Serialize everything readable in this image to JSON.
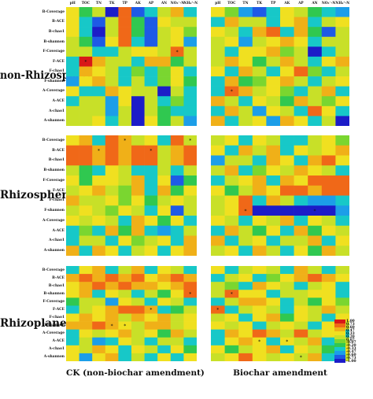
{
  "chart_data": {
    "type": "heatmap",
    "columns": [
      "pH",
      "TOC",
      "TN",
      "TK",
      "TP",
      "AK",
      "AP",
      "AN",
      "NO₃⁻-N",
      "NH₄⁺-N"
    ],
    "rows": [
      "B-Coverage",
      "B-ACE",
      "B-chao1",
      "B-shannon",
      "F-Coverage",
      "F-ACE",
      "F-chao1",
      "F-shannon",
      "A-Coverage",
      "A-ACE",
      "A-chao1",
      "A-shannon"
    ],
    "x_titles": [
      "CK (non-biochar amendment)",
      "Biochar amendment"
    ],
    "y_sections": [
      "non-Rhizosphere",
      "Rhizosphere",
      "Rhizoplane"
    ],
    "scale": {
      "min": -1.0,
      "max": 1.0,
      "ticks": [
        "1.00",
        "0.73",
        "0.60",
        "0.47",
        "0.33",
        "0.20",
        "0.07",
        "-0.07",
        "-0.20",
        "-0.33",
        "-0.47",
        "-0.60",
        "-0.73",
        "-1.00"
      ],
      "colors": [
        "#1c1cc8",
        "#1e5ae6",
        "#1c9ee8",
        "#17c8c8",
        "#30c850",
        "#7ad630",
        "#c8e028",
        "#f0e020",
        "#f0b018",
        "#f06818",
        "#d81818"
      ]
    },
    "panels": [
      {
        "section": "non-Rhizosphere",
        "treatment": "CK (non-biochar amendment)",
        "values": [
          [
            0.4,
            -0.2,
            0.2,
            -0.9,
            0.7,
            -0.7,
            -0.4,
            0.2,
            0.6,
            -0.4
          ],
          [
            0.4,
            -0.4,
            -0.75,
            0.2,
            0.7,
            -0.2,
            -0.7,
            0.4,
            0.2,
            0.2
          ],
          [
            0.4,
            -0.4,
            -0.85,
            0.2,
            0.7,
            -0.2,
            -0.7,
            0.2,
            0.4,
            -0.05
          ],
          [
            0.2,
            -0.1,
            -0.8,
            0.4,
            0.8,
            -0.3,
            -0.7,
            0.2,
            0.4,
            -0.5
          ],
          [
            0.2,
            0.1,
            -0.4,
            -0.4,
            0.2,
            0.4,
            0.45,
            0.2,
            0.8,
            0.2
          ],
          [
            -0.4,
            0.9,
            0.6,
            0.2,
            0.2,
            -0.4,
            0.6,
            0.6,
            -0.2,
            0.2
          ],
          [
            -0.4,
            0.6,
            0.4,
            0.2,
            -0.4,
            -0.05,
            -0.4,
            -0.05,
            0.4,
            -0.4
          ],
          [
            -0.6,
            0.4,
            0.6,
            0.2,
            -0.4,
            0.2,
            -0.4,
            -0.05,
            0.4,
            -0.2
          ],
          [
            0.4,
            -0.4,
            -0.4,
            0.6,
            0.4,
            0.2,
            0.2,
            -0.9,
            0.2,
            -0.4
          ],
          [
            -0.4,
            0.2,
            0.2,
            -0.5,
            0.4,
            -0.9,
            0.2,
            -0.4,
            -0.05,
            -0.4
          ],
          [
            0.2,
            0.2,
            0.2,
            -0.6,
            0.2,
            -0.9,
            0.2,
            -0.2,
            -0.4,
            -0.4
          ],
          [
            0.2,
            0.2,
            0.4,
            -0.4,
            0.2,
            -0.85,
            0.4,
            -0.2,
            0.2,
            -0.6
          ]
        ],
        "stars": [
          [
            4,
            8
          ],
          [
            5,
            1
          ]
        ]
      },
      {
        "section": "non-Rhizosphere",
        "treatment": "Biochar amendment",
        "values": [
          [
            0.4,
            -0.05,
            -0.6,
            -0.8,
            -0.4,
            0.4,
            0.2,
            -0.2,
            -0.4,
            -0.6
          ],
          [
            -0.4,
            0.6,
            0.2,
            0.2,
            -0.4,
            0.4,
            0.6,
            -0.4,
            0.2,
            0.4
          ],
          [
            0.4,
            0.2,
            -0.4,
            0.6,
            0.8,
            -0.4,
            0.6,
            -0.2,
            -0.8,
            0.2
          ],
          [
            0.2,
            0.4,
            -0.6,
            0.2,
            0.4,
            0.6,
            0.4,
            -0.4,
            0.2,
            0.2
          ],
          [
            0.2,
            -0.4,
            0.4,
            0.4,
            0.6,
            -0.05,
            0.2,
            -0.9,
            -0.4,
            0.2
          ],
          [
            0.2,
            0.6,
            0.4,
            -0.2,
            0.2,
            0.6,
            0.2,
            -0.4,
            0.4,
            0.6
          ],
          [
            0.4,
            -0.4,
            0.6,
            0.2,
            -0.4,
            0.4,
            0.8,
            -0.05,
            -0.4,
            0.2
          ],
          [
            -0.4,
            0.6,
            -0.2,
            -0.05,
            0.4,
            0.6,
            0.2,
            -0.4,
            0.2,
            0.4
          ],
          [
            -0.4,
            0.8,
            0.6,
            0.2,
            0.4,
            -0.05,
            -0.4,
            0.2,
            0.6,
            -0.4
          ],
          [
            0.6,
            0.2,
            -0.4,
            0.4,
            0.2,
            -0.2,
            0.6,
            0.2,
            -0.05,
            0.4
          ],
          [
            -0.4,
            0.6,
            0.2,
            -0.6,
            0.4,
            0.2,
            -0.4,
            0.8,
            0.4,
            -0.4
          ],
          [
            0.6,
            -0.4,
            0.2,
            0.4,
            -0.6,
            0.6,
            0.4,
            -0.4,
            0.2,
            -0.95
          ]
        ],
        "stars": [
          [
            8,
            1
          ]
        ]
      },
      {
        "section": "Rhizosphere",
        "treatment": "CK (non-biochar amendment)",
        "values": [
          [
            0.4,
            0.6,
            -0.4,
            0.8,
            0.6,
            0.2,
            0.4,
            -0.4,
            0.8,
            0.2
          ],
          [
            0.8,
            0.8,
            0.6,
            0.8,
            0.6,
            0.8,
            0.7,
            0.2,
            0.6,
            0.8
          ],
          [
            0.8,
            0.8,
            0.6,
            0.7,
            0.6,
            0.8,
            0.7,
            0.2,
            0.6,
            0.8
          ],
          [
            0.2,
            -0.2,
            -0.4,
            0.4,
            0.2,
            -0.4,
            -0.4,
            0.2,
            -0.4,
            0.2
          ],
          [
            0.4,
            -0.2,
            0.4,
            0.4,
            0.2,
            0.6,
            -0.4,
            0.4,
            -0.8,
            -0.2
          ],
          [
            0.2,
            0.4,
            0.6,
            0.2,
            -0.05,
            0.6,
            -0.4,
            0.6,
            -0.2,
            0.4
          ],
          [
            0.6,
            0.2,
            0.2,
            0.4,
            -0.05,
            0.4,
            -0.2,
            0.2,
            0.4,
            0.2
          ],
          [
            0.2,
            0.4,
            0.2,
            -0.05,
            0.4,
            0.2,
            -0.4,
            0.4,
            -0.8,
            0.2
          ],
          [
            0.4,
            0.2,
            0.4,
            0.2,
            -0.4,
            0.6,
            0.4,
            -0.2,
            0.4,
            -0.4
          ],
          [
            -0.4,
            -0.05,
            -0.4,
            0.6,
            -0.2,
            0.6,
            -0.4,
            -0.6,
            -0.4,
            0.2
          ],
          [
            -0.4,
            0.2,
            0.2,
            -0.4,
            0.4,
            -0.05,
            0.2,
            0.4,
            -0.4,
            0.6
          ],
          [
            0.6,
            -0.4,
            0.6,
            0.4,
            -0.4,
            0.2,
            0.4,
            -0.4,
            0.4,
            0.6
          ]
        ],
        "stars": [
          [
            0,
            4
          ],
          [
            0,
            9
          ],
          [
            1,
            2
          ],
          [
            1,
            6
          ]
        ]
      },
      {
        "section": "Rhizosphere",
        "treatment": "Biochar amendment",
        "values": [
          [
            0.2,
            0.4,
            -0.4,
            0.4,
            0.2,
            -0.4,
            -0.4,
            0.2,
            0.4,
            -0.05
          ],
          [
            0.4,
            -0.4,
            0.6,
            0.2,
            0.6,
            -0.4,
            0.4,
            0.2,
            0.4,
            0.6
          ],
          [
            -0.6,
            0.2,
            0.2,
            -0.4,
            0.6,
            0.4,
            -0.4,
            0.6,
            0.8,
            0.4
          ],
          [
            0.2,
            0.6,
            -0.4,
            -0.05,
            0.4,
            0.2,
            0.6,
            0.4,
            0.2,
            -0.4
          ],
          [
            -0.4,
            0.2,
            0.4,
            0.6,
            -0.4,
            0.6,
            0.4,
            0.8,
            0.8,
            0.8
          ],
          [
            0.4,
            -0.2,
            0.2,
            0.6,
            0.4,
            0.8,
            0.8,
            0.6,
            0.8,
            0.8
          ],
          [
            0.2,
            0.4,
            0.8,
            -0.4,
            0.6,
            0.2,
            -0.4,
            -0.6,
            -0.6,
            -0.4
          ],
          [
            0.2,
            0.4,
            0.8,
            -0.9,
            -0.9,
            -0.9,
            -0.9,
            -0.9,
            -0.9,
            -0.6
          ],
          [
            0.4,
            0.2,
            -0.4,
            0.4,
            0.2,
            0.6,
            -0.4,
            0.4,
            0.2,
            -0.4
          ],
          [
            -0.4,
            0.6,
            0.2,
            -0.2,
            0.4,
            -0.4,
            0.6,
            -0.2,
            0.4,
            0.2
          ],
          [
            0.6,
            -0.4,
            0.2,
            0.4,
            -0.4,
            0.2,
            0.2,
            0.6,
            -0.4,
            0.4
          ],
          [
            0.2,
            0.4,
            -0.4,
            0.6,
            0.2,
            -0.4,
            0.4,
            -0.2,
            0.6,
            0.2
          ]
        ],
        "stars": [
          [
            7,
            2
          ],
          [
            7,
            7
          ]
        ]
      },
      {
        "section": "Rhizoplane",
        "treatment": "CK (non-biochar amendment)",
        "values": [
          [
            -0.4,
            0.4,
            0.6,
            -0.4,
            0.2,
            0.6,
            -0.4,
            0.4,
            0.2,
            -0.4
          ],
          [
            0.6,
            0.8,
            0.6,
            0.8,
            0.6,
            0.8,
            0.4,
            0.6,
            0.8,
            0.6
          ],
          [
            0.4,
            0.6,
            0.8,
            0.6,
            0.8,
            0.6,
            0.6,
            0.4,
            0.6,
            0.8
          ],
          [
            0.4,
            0.6,
            -0.4,
            0.4,
            0.2,
            -0.4,
            0.2,
            -0.2,
            0.4,
            0.8
          ],
          [
            -0.2,
            0.2,
            0.2,
            -0.6,
            0.4,
            0.2,
            -0.4,
            0.4,
            0.2,
            -0.4
          ],
          [
            -0.4,
            0.2,
            0.4,
            0.6,
            0.8,
            0.8,
            0.6,
            -0.4,
            -0.2,
            0.2
          ],
          [
            0.4,
            0.6,
            0.4,
            0.6,
            0.2,
            0.6,
            0.4,
            0.6,
            0.2,
            0.4
          ],
          [
            0.6,
            0.6,
            0.8,
            0.6,
            0.4,
            0.2,
            0.6,
            0.6,
            0.2,
            0.4
          ],
          [
            -0.4,
            0.4,
            0.2,
            0.4,
            0.6,
            0.2,
            0.4,
            -0.2,
            0.6,
            0.2
          ],
          [
            -0.4,
            0.2,
            -0.6,
            -0.4,
            0.4,
            0.2,
            -0.4,
            0.2,
            0.2,
            -0.4
          ],
          [
            0.4,
            0.2,
            0.6,
            0.4,
            -0.4,
            0.4,
            0.2,
            -0.4,
            0.4,
            -0.2
          ],
          [
            0.4,
            -0.6,
            0.4,
            0.6,
            -0.4,
            0.2,
            -0.4,
            0.4,
            -0.4,
            0.4
          ]
        ],
        "stars": [
          [
            3,
            9
          ],
          [
            5,
            6
          ],
          [
            7,
            3
          ],
          [
            7,
            4
          ]
        ]
      },
      {
        "section": "Rhizoplane",
        "treatment": "Biochar amendment",
        "values": [
          [
            0.4,
            -0.4,
            0.2,
            0.4,
            0.2,
            -0.4,
            0.6,
            0.2,
            -0.4,
            0.2
          ],
          [
            -0.4,
            0.2,
            0.4,
            -0.4,
            -0.05,
            0.4,
            0.6,
            0.8,
            0.6,
            0.4
          ],
          [
            0.2,
            -0.05,
            -0.4,
            0.6,
            0.4,
            0.2,
            -0.4,
            0.2,
            0.4,
            -0.4
          ],
          [
            0.2,
            0.8,
            0.4,
            0.4,
            -0.4,
            0.2,
            0.2,
            0.4,
            0.4,
            -0.4
          ],
          [
            -0.4,
            0.2,
            0.6,
            0.6,
            0.4,
            -0.4,
            0.2,
            -0.2,
            0.4,
            -0.05
          ],
          [
            0.8,
            -0.4,
            0.2,
            0.4,
            0.2,
            -0.4,
            0.4,
            0.2,
            0.6,
            0.2
          ],
          [
            0.2,
            0.4,
            -0.4,
            0.4,
            0.6,
            -0.2,
            0.4,
            0.2,
            -0.4,
            0.4
          ],
          [
            0.4,
            0.2,
            0.4,
            -0.4,
            0.2,
            0.4,
            0.2,
            -0.4,
            0.4,
            0.2
          ],
          [
            -0.4,
            0.6,
            0.4,
            0.8,
            0.6,
            0.2,
            0.8,
            0.2,
            0.4,
            -0.4
          ],
          [
            -0.4,
            0.4,
            0.6,
            0.4,
            -0.4,
            0.4,
            0.2,
            0.6,
            -0.4,
            0.2
          ],
          [
            0.4,
            -0.2,
            0.2,
            0.4,
            0.6,
            -0.4,
            0.4,
            0.2,
            -0.2,
            0.4
          ],
          [
            0.2,
            0.4,
            0.8,
            0.4,
            0.2,
            0.4,
            0.2,
            0.6,
            -0.4,
            0.2
          ]
        ],
        "stars": [
          [
            3,
            1
          ],
          [
            5,
            0
          ],
          [
            9,
            3
          ],
          [
            9,
            5
          ],
          [
            11,
            6
          ]
        ]
      }
    ]
  }
}
